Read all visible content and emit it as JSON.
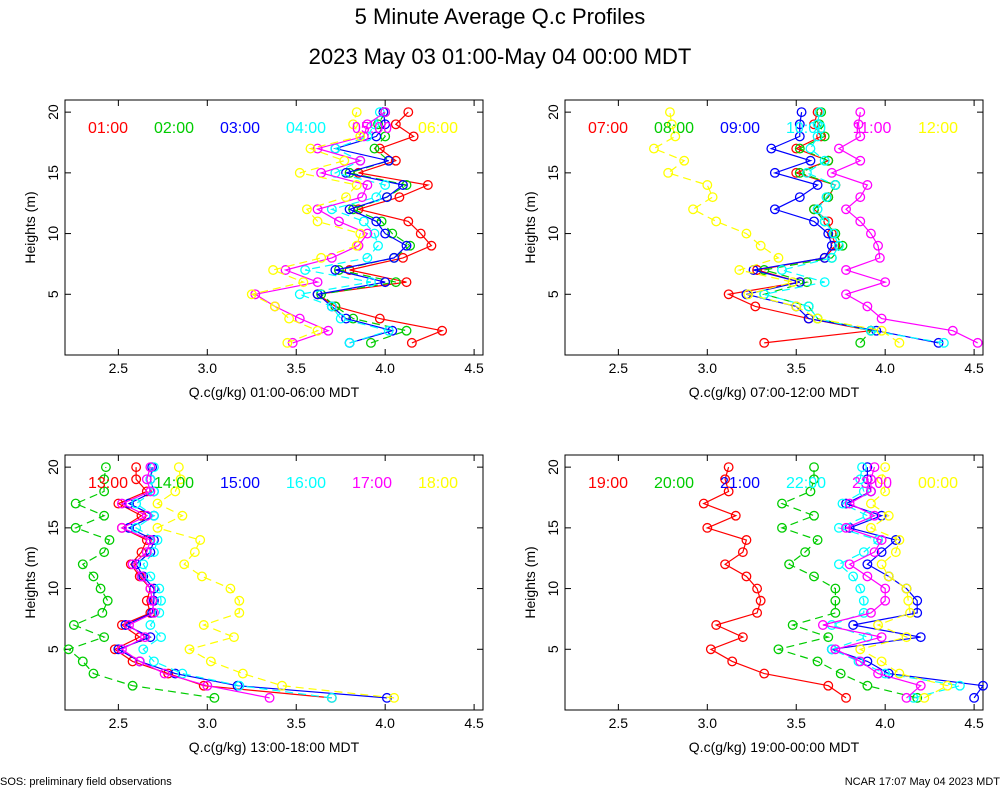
{
  "title": "5 Minute Average Q.c Profiles",
  "subtitle": "2023 May 03 01:00-May 04 00:00 MDT",
  "footer_left": "SOS: preliminary field observations",
  "footer_right": "NCAR 17:07 May 04 2023 MDT",
  "chart_data": [
    {
      "type": "line",
      "xlabel": "Q.c(g/kg) 01:00-06:00 MDT",
      "ylabel": "Heights (m)",
      "xlim": [
        2.2,
        4.55
      ],
      "ylim": [
        0,
        21
      ],
      "xticks": [
        2.5,
        3.0,
        3.5,
        4.0,
        4.5
      ],
      "yticks": [
        5,
        10,
        15,
        20
      ],
      "y": [
        1,
        2,
        3,
        4,
        5,
        6,
        7,
        8,
        9,
        10,
        11,
        12,
        13,
        14,
        15,
        16,
        17,
        18,
        19,
        20
      ],
      "series": [
        {
          "name": "01:00",
          "color": "#ff0000",
          "values": [
            4.15,
            4.32,
            3.97,
            3.72,
            3.62,
            4.12,
            3.8,
            4.1,
            4.26,
            4.2,
            4.13,
            3.85,
            4.08,
            4.24,
            3.85,
            4.06,
            3.97,
            4.16,
            4.06,
            4.13
          ]
        },
        {
          "name": "02:00",
          "color": "#00cc00",
          "values": [
            3.92,
            4.12,
            3.82,
            3.72,
            3.64,
            4.06,
            3.74,
            4.05,
            4.14,
            4.04,
            3.98,
            3.82,
            4.01,
            4.12,
            3.8,
            4.02,
            3.94,
            4.0,
            3.96,
            4.0
          ]
        },
        {
          "name": "03:00",
          "color": "#0000ff",
          "values": [
            3.8,
            4.04,
            3.78,
            3.7,
            3.62,
            4.0,
            3.72,
            4.05,
            4.12,
            4.0,
            3.95,
            3.8,
            4.01,
            4.1,
            3.78,
            4.02,
            3.72,
            3.95,
            4.0,
            3.99
          ]
        },
        {
          "name": "04:00",
          "color": "#00ffff",
          "values": [
            3.8,
            4.02,
            3.75,
            3.7,
            3.52,
            3.92,
            3.55,
            3.9,
            3.96,
            3.94,
            3.88,
            3.7,
            3.95,
            4.0,
            3.72,
            3.86,
            3.72,
            3.9,
            3.94,
            3.97
          ]
        },
        {
          "name": "05:00",
          "color": "#ff00ff",
          "values": [
            3.48,
            3.68,
            3.52,
            3.38,
            3.27,
            3.62,
            3.44,
            3.7,
            3.85,
            3.9,
            3.74,
            3.62,
            3.87,
            3.9,
            3.64,
            3.86,
            3.62,
            3.88,
            3.9,
            4.0
          ]
        },
        {
          "name": "06:00",
          "color": "#ffff00",
          "values": [
            3.45,
            3.62,
            3.46,
            3.38,
            3.25,
            3.54,
            3.37,
            3.64,
            3.84,
            3.86,
            3.62,
            3.56,
            3.78,
            3.84,
            3.52,
            3.77,
            3.58,
            3.86,
            3.82,
            3.84
          ]
        }
      ]
    },
    {
      "type": "line",
      "xlabel": "Q.c(g/kg) 07:00-12:00 MDT",
      "ylabel": "Heights (m)",
      "xlim": [
        2.2,
        4.55
      ],
      "ylim": [
        0,
        21
      ],
      "xticks": [
        2.5,
        3.0,
        3.5,
        4.0,
        4.5
      ],
      "yticks": [
        5,
        10,
        15,
        20
      ],
      "y": [
        1,
        2,
        3,
        4,
        5,
        6,
        7,
        8,
        9,
        10,
        11,
        12,
        13,
        14,
        15,
        16,
        17,
        18,
        19,
        20
      ],
      "series": [
        {
          "name": "07:00",
          "color": "#ff0000",
          "values": [
            3.32,
            3.92,
            3.57,
            3.27,
            3.12,
            3.52,
            3.28,
            3.66,
            3.72,
            3.7,
            3.68,
            3.6,
            3.68,
            3.72,
            3.5,
            3.68,
            3.5,
            3.64,
            3.6,
            3.62
          ]
        },
        {
          "name": "08:00",
          "color": "#00cc00",
          "values": [
            3.86,
            3.92,
            3.62,
            3.57,
            3.32,
            3.56,
            3.32,
            3.7,
            3.76,
            3.72,
            3.66,
            3.6,
            3.68,
            3.72,
            3.52,
            3.68,
            3.52,
            3.66,
            3.63,
            3.64
          ]
        },
        {
          "name": "09:00",
          "color": "#0000ff",
          "values": [
            4.3,
            3.95,
            3.57,
            3.5,
            3.22,
            3.52,
            3.26,
            3.66,
            3.7,
            3.68,
            3.6,
            3.38,
            3.52,
            3.62,
            3.38,
            3.58,
            3.36,
            3.52,
            3.52,
            3.53
          ]
        },
        {
          "name": "10:00",
          "color": "#00ffff",
          "values": [
            4.33,
            3.92,
            3.62,
            3.57,
            3.32,
            3.66,
            3.42,
            3.7,
            3.74,
            3.71,
            3.66,
            3.62,
            3.67,
            3.72,
            3.56,
            3.66,
            3.58,
            3.62,
            3.62,
            3.63
          ]
        },
        {
          "name": "11:00",
          "color": "#ff00ff",
          "values": [
            4.52,
            4.38,
            3.98,
            3.9,
            3.78,
            4.0,
            3.78,
            3.97,
            3.96,
            3.92,
            3.86,
            3.78,
            3.86,
            3.9,
            3.7,
            3.86,
            3.74,
            3.86,
            3.85,
            3.86
          ]
        },
        {
          "name": "12:00",
          "color": "#ffff00",
          "values": [
            4.08,
            3.98,
            3.62,
            3.5,
            3.23,
            3.48,
            3.18,
            3.4,
            3.3,
            3.22,
            3.05,
            2.92,
            3.03,
            3.0,
            2.78,
            2.87,
            2.7,
            2.82,
            2.8,
            2.79
          ]
        }
      ]
    },
    {
      "type": "line",
      "xlabel": "Q.c(g/kg) 13:00-18:00 MDT",
      "ylabel": "Heights (m)",
      "xlim": [
        2.2,
        4.55
      ],
      "ylim": [
        0,
        21
      ],
      "xticks": [
        2.5,
        3.0,
        3.5,
        4.0,
        4.5
      ],
      "yticks": [
        5,
        10,
        15,
        20
      ],
      "y": [
        1,
        2,
        3,
        4,
        5,
        6,
        7,
        8,
        9,
        10,
        11,
        12,
        13,
        14,
        15,
        16,
        17,
        18,
        19,
        20
      ],
      "series": [
        {
          "name": "13:00",
          "color": "#ff0000",
          "values": [
            3.7,
            2.98,
            2.78,
            2.58,
            2.48,
            2.62,
            2.52,
            2.68,
            2.66,
            2.68,
            2.62,
            2.57,
            2.63,
            2.66,
            2.52,
            2.63,
            2.5,
            2.66,
            2.6,
            2.6
          ]
        },
        {
          "name": "14:00",
          "color": "#00cc00",
          "values": [
            3.04,
            2.58,
            2.36,
            2.3,
            2.22,
            2.42,
            2.25,
            2.41,
            2.44,
            2.4,
            2.36,
            2.3,
            2.42,
            2.45,
            2.26,
            2.42,
            2.26,
            2.42,
            2.42,
            2.43
          ]
        },
        {
          "name": "15:00",
          "color": "#0000ff",
          "values": [
            4.01,
            3.17,
            2.82,
            2.62,
            2.5,
            2.68,
            2.54,
            2.69,
            2.7,
            2.7,
            2.64,
            2.6,
            2.68,
            2.7,
            2.56,
            2.7,
            2.56,
            2.7,
            2.68,
            2.69
          ]
        },
        {
          "name": "16:00",
          "color": "#00ffff",
          "values": [
            3.7,
            3.18,
            2.86,
            2.7,
            2.64,
            2.74,
            2.68,
            2.73,
            2.74,
            2.73,
            2.68,
            2.64,
            2.7,
            2.72,
            2.6,
            2.7,
            2.6,
            2.7,
            2.68,
            2.7
          ]
        },
        {
          "name": "17:00",
          "color": "#ff00ff",
          "values": [
            3.35,
            3.0,
            2.76,
            2.62,
            2.52,
            2.65,
            2.56,
            2.7,
            2.69,
            2.68,
            2.63,
            2.58,
            2.66,
            2.68,
            2.52,
            2.66,
            2.52,
            2.68,
            2.66,
            2.68
          ]
        },
        {
          "name": "18:00",
          "color": "#ffff00",
          "values": [
            4.05,
            3.42,
            3.2,
            3.02,
            2.9,
            3.15,
            2.98,
            3.18,
            3.18,
            3.13,
            2.97,
            2.87,
            2.93,
            2.96,
            2.72,
            2.86,
            2.72,
            2.82,
            2.85,
            2.84
          ]
        }
      ]
    },
    {
      "type": "line",
      "xlabel": "Q.c(g/kg) 19:00-00:00 MDT",
      "ylabel": "Heights (m)",
      "xlim": [
        2.2,
        4.55
      ],
      "ylim": [
        0,
        21
      ],
      "xticks": [
        2.5,
        3.0,
        3.5,
        4.0,
        4.5
      ],
      "yticks": [
        5,
        10,
        15,
        20
      ],
      "y": [
        1,
        2,
        3,
        4,
        5,
        6,
        7,
        8,
        9,
        10,
        11,
        12,
        13,
        14,
        15,
        16,
        17,
        18,
        19,
        20
      ],
      "series": [
        {
          "name": "19:00",
          "color": "#ff0000",
          "values": [
            3.78,
            3.68,
            3.32,
            3.14,
            3.02,
            3.2,
            3.05,
            3.28,
            3.3,
            3.28,
            3.22,
            3.1,
            3.2,
            3.22,
            3.0,
            3.16,
            2.98,
            3.12,
            3.1,
            3.12
          ]
        },
        {
          "name": "20:00",
          "color": "#00cc00",
          "values": [
            4.18,
            3.9,
            3.75,
            3.62,
            3.4,
            3.68,
            3.48,
            3.72,
            3.72,
            3.72,
            3.6,
            3.46,
            3.55,
            3.62,
            3.42,
            3.6,
            3.42,
            3.58,
            3.6,
            3.6
          ]
        },
        {
          "name": "21:00",
          "color": "#0000ff",
          "values": [
            4.5,
            4.55,
            4.02,
            3.9,
            3.7,
            4.2,
            3.82,
            4.18,
            4.18,
            4.12,
            4.02,
            3.9,
            3.98,
            4.06,
            3.8,
            3.98,
            3.78,
            3.92,
            3.9,
            3.9
          ]
        },
        {
          "name": "22:00",
          "color": "#00ffff",
          "values": [
            4.16,
            4.42,
            4.0,
            3.85,
            3.7,
            3.9,
            3.7,
            3.88,
            3.88,
            3.86,
            3.82,
            3.74,
            3.88,
            3.96,
            3.74,
            3.9,
            3.76,
            3.88,
            3.86,
            3.87
          ]
        },
        {
          "name": "23:00",
          "color": "#ff00ff",
          "values": [
            4.12,
            4.2,
            3.96,
            3.86,
            3.72,
            3.98,
            3.65,
            3.92,
            4.0,
            4.0,
            3.9,
            3.8,
            3.94,
            3.98,
            3.78,
            3.94,
            3.8,
            3.92,
            3.92,
            3.94
          ]
        },
        {
          "name": "00:00",
          "color": "#ffff00",
          "values": [
            4.22,
            4.35,
            4.08,
            3.98,
            3.86,
            4.12,
            3.96,
            4.14,
            4.13,
            4.12,
            4.02,
            3.98,
            4.06,
            4.08,
            3.92,
            4.02,
            3.92,
            4.0,
            3.98,
            4.0
          ]
        }
      ]
    }
  ]
}
